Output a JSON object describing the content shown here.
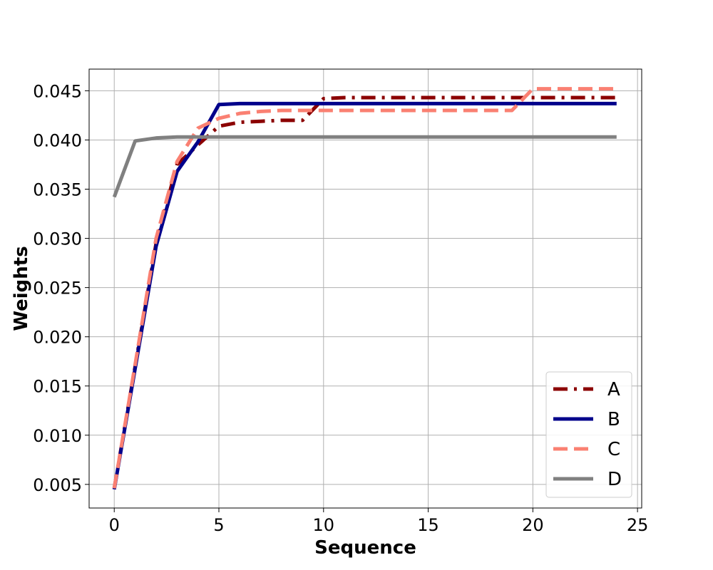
{
  "chart_data": {
    "type": "line",
    "title": "",
    "xlabel": "Sequence",
    "ylabel": "Weights",
    "xlim": [
      -1.2,
      25.2
    ],
    "ylim": [
      0.0026,
      0.0472
    ],
    "xticks": [
      0,
      5,
      10,
      15,
      20,
      25
    ],
    "xtick_labels": [
      "0",
      "5",
      "10",
      "15",
      "20",
      "25"
    ],
    "yticks": [
      0.005,
      0.01,
      0.015,
      0.02,
      0.025,
      0.03,
      0.035,
      0.04,
      0.045
    ],
    "ytick_labels": [
      "0.005",
      "0.010",
      "0.015",
      "0.020",
      "0.025",
      "0.030",
      "0.035",
      "0.040",
      "0.045"
    ],
    "grid": true,
    "legend_position": "bottom-right",
    "x": [
      0,
      1,
      2,
      3,
      4,
      5,
      6,
      7,
      8,
      9,
      10,
      11,
      12,
      13,
      14,
      15,
      16,
      17,
      18,
      19,
      20,
      21,
      22,
      23,
      24
    ],
    "series": [
      {
        "name": "A",
        "color": "#8b0000",
        "dash": "dashdot",
        "values": [
          0.0046,
          0.017,
          0.0295,
          0.0375,
          0.0395,
          0.0414,
          0.0418,
          0.0419,
          0.042,
          0.042,
          0.0442,
          0.0443,
          0.0443,
          0.0443,
          0.0443,
          0.0443,
          0.0443,
          0.0443,
          0.0443,
          0.0443,
          0.0443,
          0.0443,
          0.0443,
          0.0443,
          0.0443
        ]
      },
      {
        "name": "B",
        "color": "#00008b",
        "dash": "solid",
        "values": [
          0.0045,
          0.0168,
          0.0292,
          0.0368,
          0.0398,
          0.0436,
          0.0437,
          0.0437,
          0.0437,
          0.0437,
          0.0437,
          0.0437,
          0.0437,
          0.0437,
          0.0437,
          0.0437,
          0.0437,
          0.0437,
          0.0437,
          0.0437,
          0.0437,
          0.0437,
          0.0437,
          0.0437,
          0.0437
        ]
      },
      {
        "name": "C",
        "color": "#fa8072",
        "dash": "dashed",
        "values": [
          0.0046,
          0.0172,
          0.03,
          0.0378,
          0.0412,
          0.0422,
          0.0427,
          0.0429,
          0.043,
          0.043,
          0.043,
          0.043,
          0.043,
          0.043,
          0.043,
          0.043,
          0.043,
          0.043,
          0.043,
          0.043,
          0.0452,
          0.0452,
          0.0452,
          0.0452,
          0.0452
        ]
      },
      {
        "name": "D",
        "color": "#808080",
        "dash": "solid",
        "values": [
          0.0342,
          0.0399,
          0.0402,
          0.0403,
          0.0403,
          0.0403,
          0.0403,
          0.0403,
          0.0403,
          0.0403,
          0.0403,
          0.0403,
          0.0403,
          0.0403,
          0.0403,
          0.0403,
          0.0403,
          0.0403,
          0.0403,
          0.0403,
          0.0403,
          0.0403,
          0.0403,
          0.0403,
          0.0403
        ]
      }
    ]
  }
}
